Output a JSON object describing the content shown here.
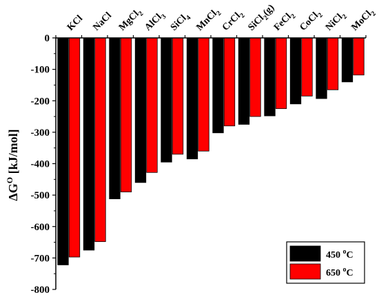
{
  "chart_data": {
    "type": "bar",
    "categories": [
      "KCl",
      "NaCl",
      "MgCl2",
      "AlCl3",
      "SiCl4",
      "MnCl2",
      "CrCl2",
      "SiCl2(g)",
      "FeCl2",
      "CoCl2",
      "NiCl2",
      "MoCl2"
    ],
    "category_labels": [
      {
        "base": "KCl",
        "sub": "",
        "tail": ""
      },
      {
        "base": "NaCl",
        "sub": "",
        "tail": ""
      },
      {
        "base": "MgCl",
        "sub": "2",
        "tail": ""
      },
      {
        "base": "AlCl",
        "sub": "3",
        "tail": ""
      },
      {
        "base": "SiCl",
        "sub": "4",
        "tail": ""
      },
      {
        "base": "MnCl",
        "sub": "2",
        "tail": ""
      },
      {
        "base": "CrCl",
        "sub": "2",
        "tail": ""
      },
      {
        "base": "SiCl",
        "sub": "2",
        "tail": "(g)"
      },
      {
        "base": "FeCl",
        "sub": "2",
        "tail": ""
      },
      {
        "base": "CoCl",
        "sub": "2",
        "tail": ""
      },
      {
        "base": "NiCl",
        "sub": "2",
        "tail": ""
      },
      {
        "base": "MoCl",
        "sub": "2",
        "tail": ""
      }
    ],
    "series": [
      {
        "name": "450 oC",
        "label_base": "450 ",
        "label_sup": "o",
        "label_tail": "C",
        "color": "#000000",
        "values": [
          -722,
          -675,
          -512,
          -460,
          -395,
          -385,
          -302,
          -275,
          -248,
          -210,
          -193,
          -140
        ]
      },
      {
        "name": "650 oC",
        "label_base": "650 ",
        "label_sup": "o",
        "label_tail": "C",
        "color": "#ff0000",
        "values": [
          -697,
          -648,
          -490,
          -428,
          -370,
          -360,
          -280,
          -250,
          -225,
          -185,
          -165,
          -118
        ]
      }
    ],
    "ylabel": {
      "base": "ΔG",
      "sup": "O",
      "tail": " [kJ/mol]"
    },
    "ylim": [
      -800,
      0
    ],
    "yticks": [
      0,
      -100,
      -200,
      -300,
      -400,
      -500,
      -600,
      -700,
      -800
    ],
    "legend_position": "bottom-right",
    "grid": false
  }
}
